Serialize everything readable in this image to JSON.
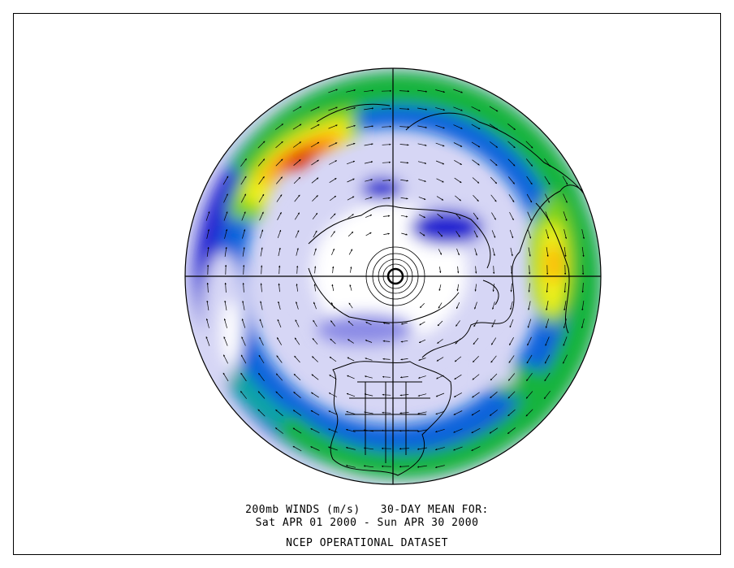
{
  "caption": {
    "line1": "200mb WINDS (m/s)   30-DAY MEAN FOR:",
    "line2": "Sat APR 01 2000 - Sun APR 30 2000",
    "line3": "NCEP OPERATIONAL DATASET"
  },
  "map": {
    "projection": "north-polar-stereographic",
    "field": "200mb wind speed, 30-day mean",
    "units": "m/s",
    "palette": [
      "#ffffff",
      "#d6d6f5",
      "#8c8ce6",
      "#2828d2",
      "#0a64dc",
      "#0aa8a0",
      "#14b43c",
      "#78d21e",
      "#f0f01e",
      "#ffb400",
      "#ff5a00",
      "#dc1e00"
    ],
    "coastline_color": "#000000",
    "vector_color": "#000000"
  }
}
